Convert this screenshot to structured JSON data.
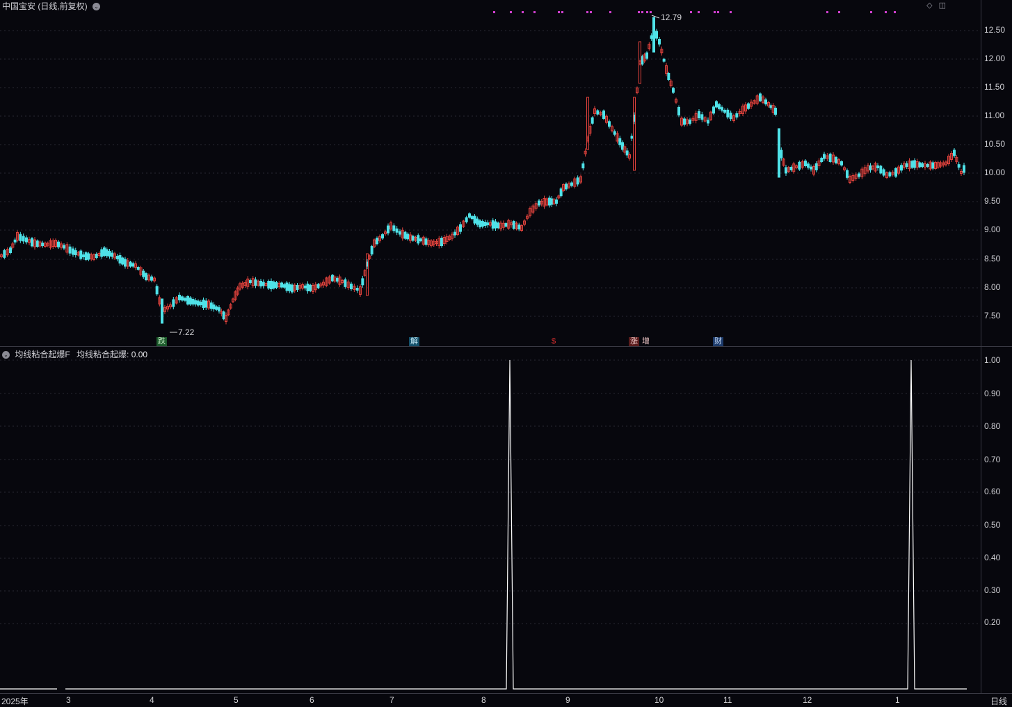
{
  "header": {
    "title": "中国宝安 (日线,前复权)",
    "collapse_icon": "chevron-down-icon"
  },
  "corner_icons": [
    "diamond-icon",
    "window-icon"
  ],
  "price_axis": [
    "12.50",
    "12.00",
    "11.50",
    "11.00",
    "10.50",
    "10.00",
    "9.50",
    "9.00",
    "8.50",
    "8.00",
    "7.50"
  ],
  "indicator_axis": [
    "1.00",
    "0.90",
    "0.80",
    "0.70",
    "0.60",
    "0.50",
    "0.40",
    "0.30",
    "0.20"
  ],
  "annotations": {
    "high_label": "12.79",
    "low_label": "7.22"
  },
  "event_tags": [
    {
      "text": "跌",
      "color": "#2fa84f"
    },
    {
      "text": "解",
      "color": "#3aa0c8"
    },
    {
      "text": "$",
      "color": "#e03030"
    },
    {
      "text": "涨",
      "color": "#c84040"
    },
    {
      "text": "增",
      "color": "#c84040"
    },
    {
      "text": "财",
      "color": "#3a7fd0"
    }
  ],
  "indicator": {
    "name": "均线粘合起爆F",
    "label": "均线粘合起爆",
    "value": "0.00"
  },
  "time_axis": {
    "labels": [
      "2025年",
      "3",
      "4",
      "5",
      "6",
      "7",
      "8",
      "9",
      "10",
      "11",
      "12",
      "1"
    ],
    "period": "日线"
  },
  "colors": {
    "up": "#e0423c",
    "down": "#4fe2e8",
    "signal": "#d040d0",
    "indicator_line": "#ffffff"
  }
}
